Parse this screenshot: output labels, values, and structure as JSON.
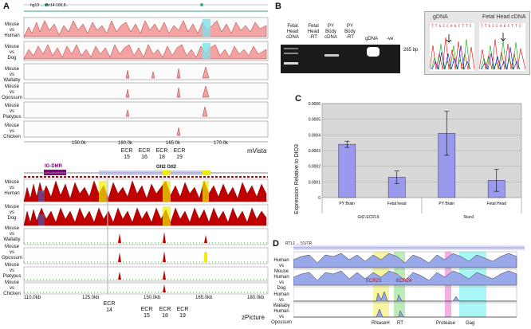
{
  "panels": {
    "a": "A",
    "b": "B",
    "c": "C",
    "d": "D"
  },
  "mvista": {
    "header": "hg19 ... chr14:100,8..",
    "rows": [
      "Mouse\nvs\nHuman",
      "Mouse\nvs\nDog",
      "Mouse\nvs\nWallaby",
      "Mouse\nvs\nOpossum",
      "Mouse\nvs\nPlatypus",
      "Mouse\nvs\nChicken"
    ],
    "axis": [
      "150.0k",
      "160.0k",
      "165.0k",
      "170.0k"
    ],
    "ecr_labels": [
      "ECR\n15",
      "ECR\n16",
      "ECR\n18",
      "ECR\n19"
    ],
    "tool": "mVista"
  },
  "zpicture": {
    "dmr_label": "IG-DMR",
    "gene_label": "Gtl2  Gtl2",
    "rows": [
      "Mouse\nvs\nHuman",
      "Mouse\nvs\nDog",
      "Mouse\nvs\nWallaby",
      "Mouse\nvs\nOpossum",
      "Mouse\nvs\nPlatypus",
      "Mouse\nvs\nChicken"
    ],
    "axis": [
      "110.0kb",
      "125.0kb",
      "150.0kb",
      "165.0kb",
      "180.0kb"
    ],
    "ecr_labels": [
      "ECR\n14",
      "ECR\n15",
      "ECR\n18",
      "ECR\n19"
    ],
    "tool": "zPicture"
  },
  "gel": {
    "lanes": [
      "Fetal\nHead\ncDNA",
      "Fetal\nHead\n-RT",
      "PY\nBody\ncDNA",
      "PY\nBody\n-RT",
      "gDNA",
      "-ve"
    ],
    "band_size": "265 bp"
  },
  "chromatograms": {
    "left_title": "gDNA",
    "right_title": "Fetal Head cDNA",
    "left_seq": "T T G C C A G C T T C",
    "right_seq": "T T G C C A G C T T C"
  },
  "chart_data": {
    "type": "bar",
    "title": "",
    "ylabel": "Expression  Relative to DIO3",
    "categories": [
      "PY Brain",
      "Fetal head",
      "PY Brain",
      "Fetal Head"
    ],
    "groups": [
      "Gtl2-ECR19",
      "Rian3"
    ],
    "values": [
      0.00034,
      0.00013,
      0.00041,
      0.00011
    ],
    "errors": [
      2e-05,
      4e-05,
      0.00014,
      7e-05
    ],
    "ylim": [
      0,
      0.0006
    ],
    "yticks": [
      "0",
      "0.0001",
      "0.0002",
      "0.0003",
      "0.0004",
      "0.0005",
      "0.0006"
    ],
    "grid": true
  },
  "panel_d": {
    "header": "RTL1 ... 5'UTR",
    "rows": [
      "Human\nvs\nMouse",
      "Human\nvs\nDog",
      "Human\nvs\nWallaby",
      "Human\nvs\nOpossum"
    ],
    "ecr_labels": [
      "ECR23",
      "ECR24"
    ],
    "domains": [
      "RNaseH",
      "RT",
      "Protease",
      "Gag"
    ]
  },
  "colors": {
    "conserved_pink": "#f4a3a3",
    "conserved_red": "#c00000",
    "utr_cyan": "#7fe0e8",
    "bar_fill": "#9999ee",
    "band_yellow": "#f4f07a",
    "band_green": "#9fe39a",
    "band_pink": "#f07ad0",
    "band_cyan": "#6ff0f0"
  }
}
